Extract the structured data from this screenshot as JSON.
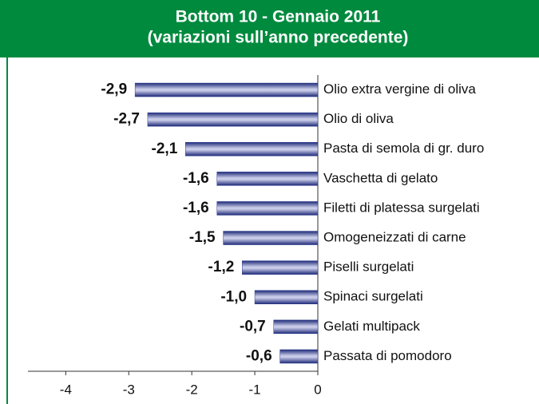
{
  "chart_data": {
    "type": "barh",
    "title": "Bottom 10 - Gennaio 2011",
    "subtitle": "(variazioni sull’anno precedente)",
    "categories": [
      "Olio extra vergine di oliva",
      "Olio di oliva",
      "Pasta di semola di gr. duro",
      "Vaschetta di gelato",
      "Filetti di platessa surgelati",
      "Omogeneizzati di carne",
      "Piselli surgelati",
      "Spinaci surgelati",
      "Gelati multipack",
      "Passata di pomodoro"
    ],
    "values": [
      -2.9,
      -2.7,
      -2.1,
      -1.6,
      -1.6,
      -1.5,
      -1.2,
      -1.0,
      -0.7,
      -0.6
    ],
    "value_labels": [
      "-2,9",
      "-2,7",
      "-2,1",
      "-1,6",
      "-1,6",
      "-1,5",
      "-1,2",
      "-1,0",
      "-0,7",
      "-0,6"
    ],
    "color": "#2b3990",
    "xlim": [
      -4.6,
      0
    ],
    "xticks": [
      -4,
      -3,
      -2,
      -1,
      0
    ]
  }
}
